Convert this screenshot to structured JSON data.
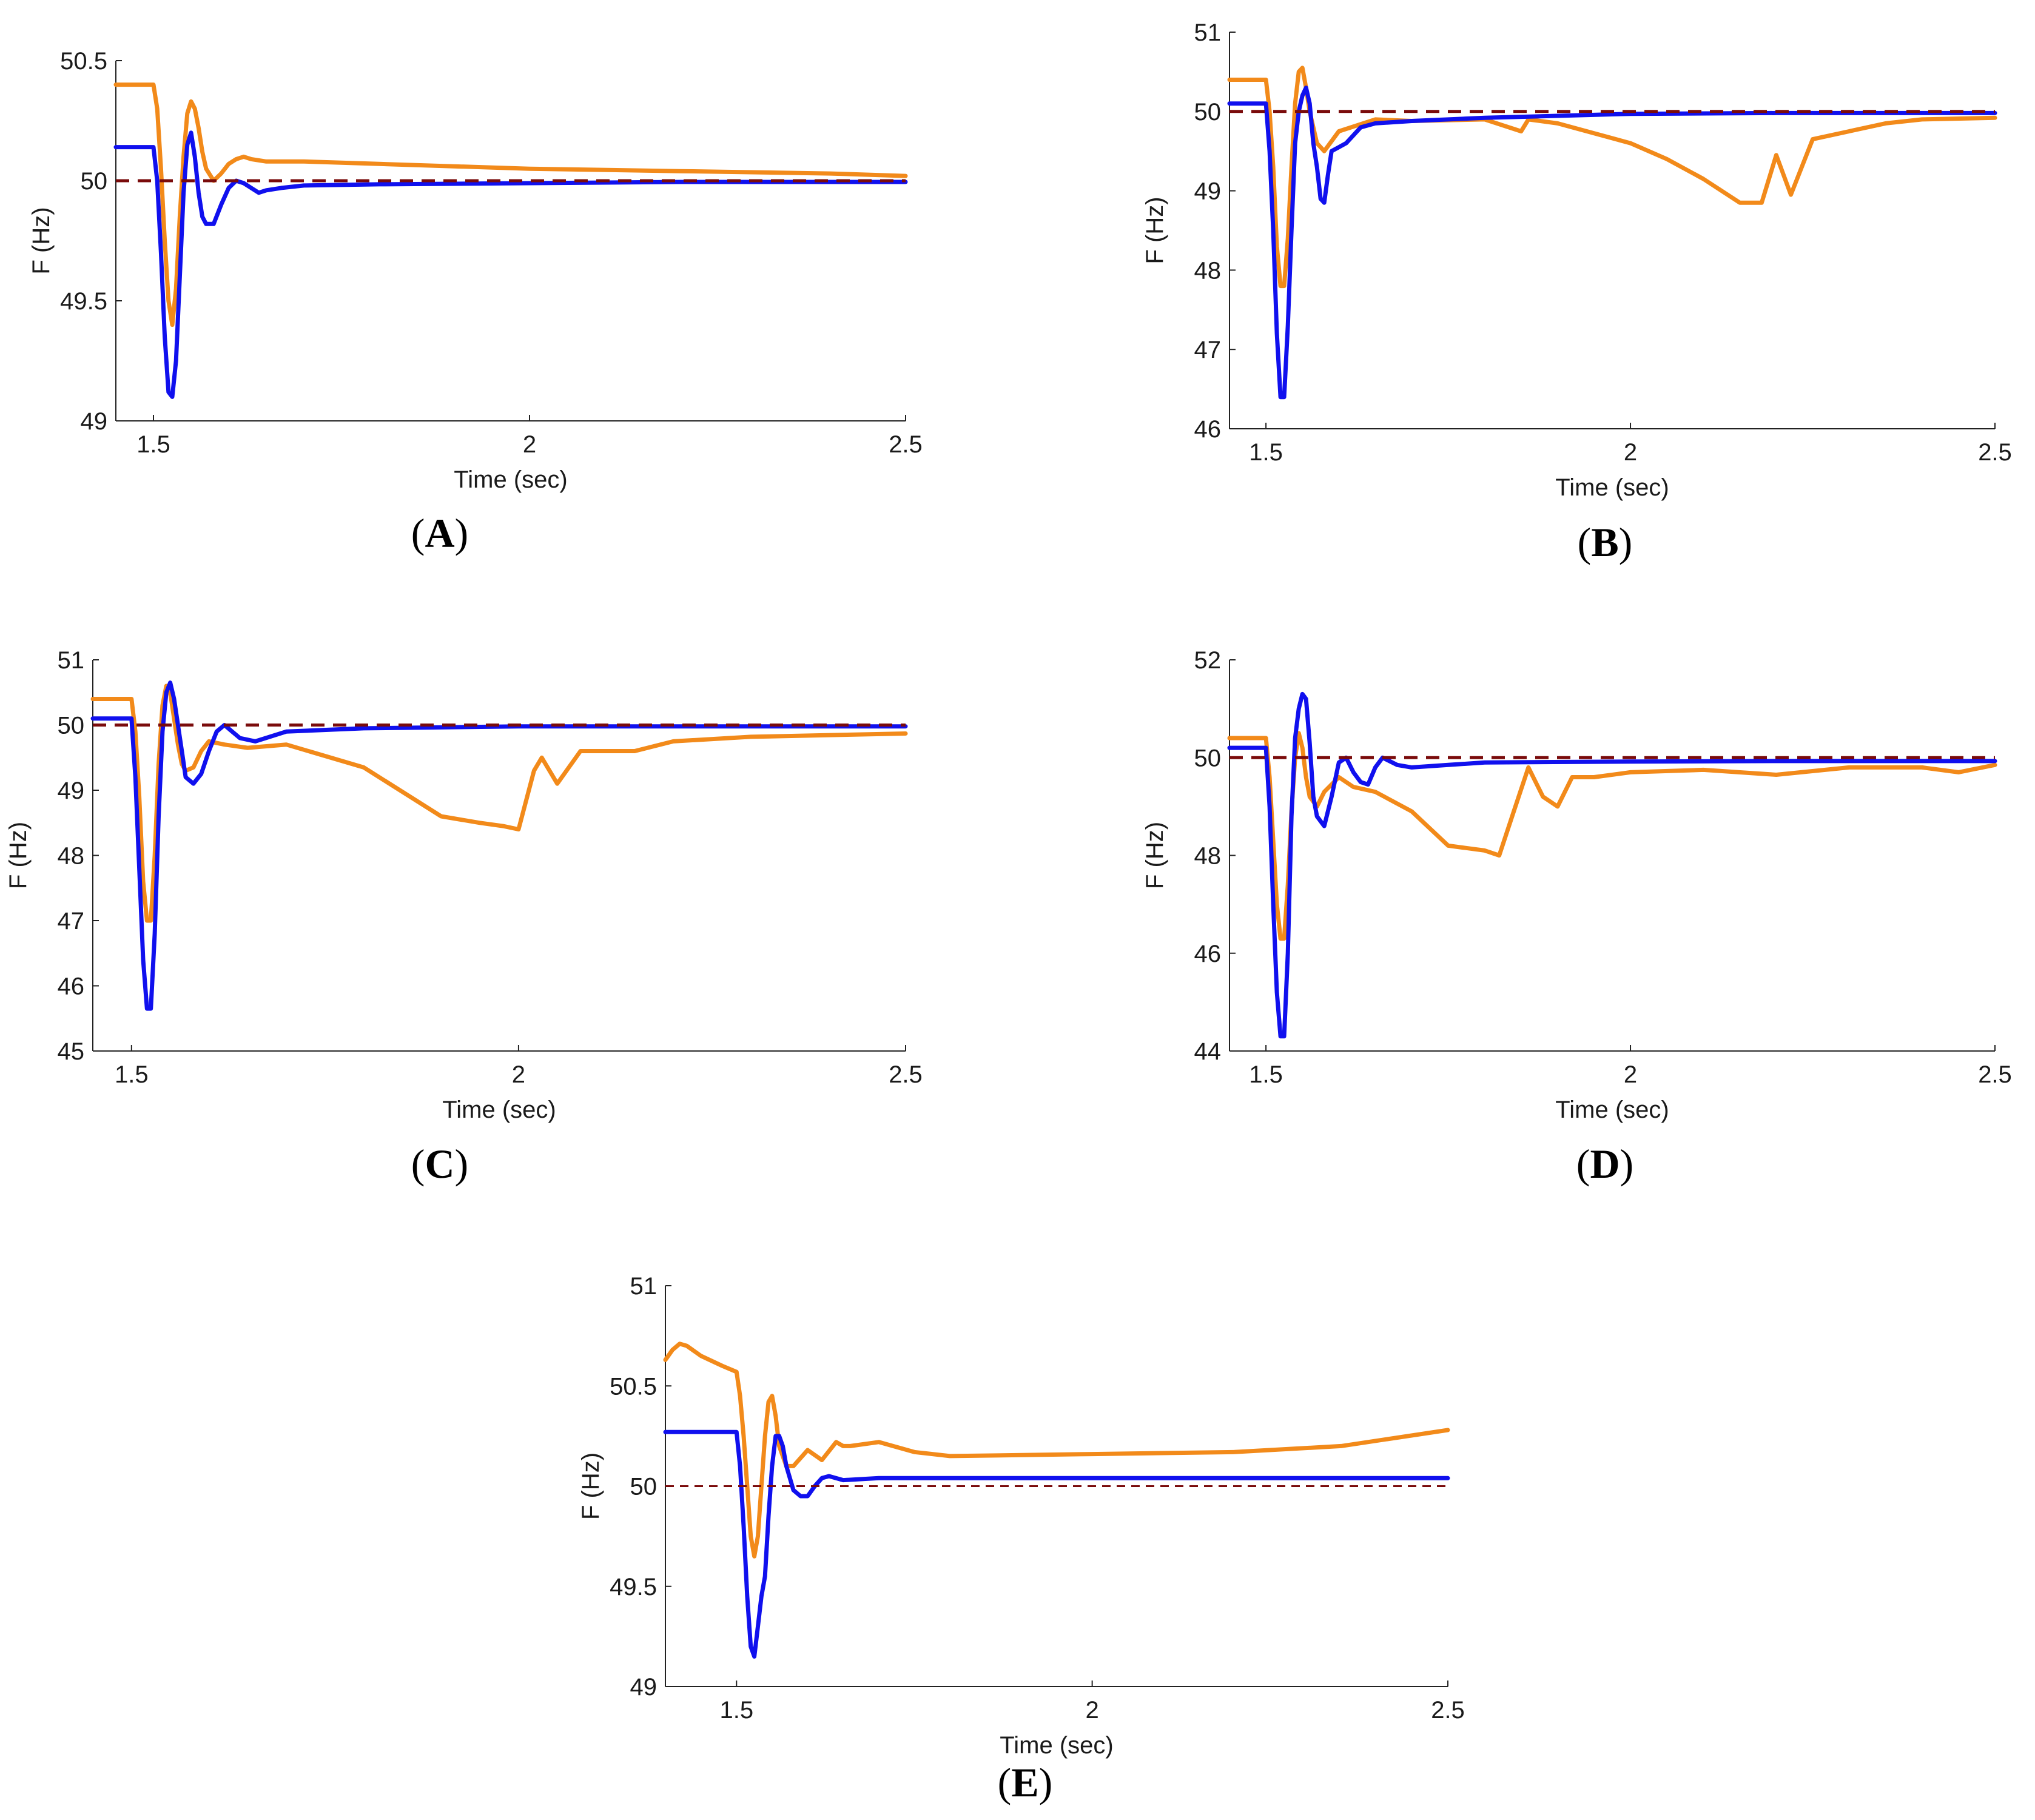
{
  "colors": {
    "orange": "#f28a1a",
    "blue": "#1010ee",
    "reference": "#7a0b0b",
    "axis": "#222222"
  },
  "chart_data": [
    {
      "panel": "A",
      "label": "A",
      "type": "line",
      "xlabel": "Time (sec)",
      "ylabel": "F (Hz)",
      "xlim": [
        1.45,
        2.5
      ],
      "ylim": [
        49,
        50.5
      ],
      "xticks": [
        {
          "v": 1.5,
          "t": "1.5"
        },
        {
          "v": 2,
          "t": "2"
        },
        {
          "v": 2.5,
          "t": "2.5"
        }
      ],
      "yticks": [
        {
          "v": 49,
          "t": "49"
        },
        {
          "v": 49.5,
          "t": "49.5"
        },
        {
          "v": 50,
          "t": "50"
        },
        {
          "v": 50.5,
          "t": "50.5"
        }
      ],
      "series": [
        {
          "name": "reference",
          "color": "reference",
          "dashed": true,
          "x": [
            1.45,
            2.5
          ],
          "y": [
            50,
            50
          ]
        },
        {
          "name": "orange",
          "color": "orange",
          "x": [
            1.45,
            1.5,
            1.505,
            1.51,
            1.515,
            1.52,
            1.525,
            1.53,
            1.535,
            1.54,
            1.545,
            1.55,
            1.555,
            1.56,
            1.565,
            1.57,
            1.58,
            1.59,
            1.6,
            1.61,
            1.62,
            1.63,
            1.65,
            1.7,
            1.8,
            2.0,
            2.2,
            2.4,
            2.5
          ],
          "y": [
            50.4,
            50.4,
            50.3,
            50.05,
            49.75,
            49.5,
            49.4,
            49.55,
            49.85,
            50.1,
            50.28,
            50.33,
            50.3,
            50.22,
            50.12,
            50.05,
            50.0,
            50.03,
            50.07,
            50.09,
            50.1,
            50.09,
            50.08,
            50.08,
            50.07,
            50.05,
            50.04,
            50.03,
            50.02
          ]
        },
        {
          "name": "blue",
          "color": "blue",
          "x": [
            1.45,
            1.5,
            1.505,
            1.51,
            1.515,
            1.52,
            1.525,
            1.53,
            1.535,
            1.54,
            1.545,
            1.55,
            1.555,
            1.56,
            1.565,
            1.57,
            1.58,
            1.59,
            1.6,
            1.61,
            1.62,
            1.63,
            1.64,
            1.65,
            1.67,
            1.7,
            1.8,
            2.0,
            2.2,
            2.5
          ],
          "y": [
            50.14,
            50.14,
            50.0,
            49.7,
            49.35,
            49.12,
            49.1,
            49.25,
            49.6,
            49.95,
            50.15,
            50.2,
            50.1,
            49.95,
            49.85,
            49.82,
            49.82,
            49.9,
            49.97,
            50.0,
            49.99,
            49.97,
            49.95,
            49.96,
            49.97,
            49.98,
            49.985,
            49.99,
            49.995,
            49.995
          ]
        }
      ]
    },
    {
      "panel": "B",
      "label": "B",
      "type": "line",
      "xlabel": "Time (sec)",
      "ylabel": "F (Hz)",
      "xlim": [
        1.45,
        2.5
      ],
      "ylim": [
        46,
        51
      ],
      "xticks": [
        {
          "v": 1.5,
          "t": "1.5"
        },
        {
          "v": 2,
          "t": "2"
        },
        {
          "v": 2.5,
          "t": "2.5"
        }
      ],
      "yticks": [
        {
          "v": 46,
          "t": "46"
        },
        {
          "v": 47,
          "t": "47"
        },
        {
          "v": 48,
          "t": "48"
        },
        {
          "v": 49,
          "t": "49"
        },
        {
          "v": 50,
          "t": "50"
        },
        {
          "v": 51,
          "t": "51"
        }
      ],
      "series": [
        {
          "name": "reference",
          "color": "reference",
          "dashed": true,
          "x": [
            1.45,
            2.5
          ],
          "y": [
            50,
            50
          ]
        },
        {
          "name": "orange",
          "color": "orange",
          "x": [
            1.45,
            1.5,
            1.505,
            1.51,
            1.515,
            1.52,
            1.525,
            1.53,
            1.535,
            1.54,
            1.545,
            1.55,
            1.555,
            1.56,
            1.565,
            1.57,
            1.58,
            1.6,
            1.65,
            1.7,
            1.8,
            1.85,
            1.86,
            1.9,
            2.0,
            2.05,
            2.1,
            2.15,
            2.18,
            2.2,
            2.22,
            2.25,
            2.3,
            2.35,
            2.4,
            2.5
          ],
          "y": [
            50.4,
            50.4,
            50.0,
            49.3,
            48.3,
            47.8,
            47.8,
            48.4,
            49.3,
            50.1,
            50.5,
            50.55,
            50.3,
            50.0,
            49.8,
            49.6,
            49.5,
            49.75,
            49.9,
            49.88,
            49.9,
            49.75,
            49.9,
            49.85,
            49.6,
            49.4,
            49.15,
            48.85,
            48.85,
            49.45,
            48.95,
            49.65,
            49.75,
            49.85,
            49.9,
            49.92
          ]
        },
        {
          "name": "blue",
          "color": "blue",
          "x": [
            1.45,
            1.5,
            1.505,
            1.51,
            1.515,
            1.52,
            1.525,
            1.53,
            1.535,
            1.54,
            1.545,
            1.55,
            1.555,
            1.56,
            1.565,
            1.57,
            1.575,
            1.58,
            1.585,
            1.59,
            1.6,
            1.61,
            1.63,
            1.65,
            1.7,
            1.8,
            2.0,
            2.2,
            2.5
          ],
          "y": [
            50.1,
            50.1,
            49.5,
            48.5,
            47.2,
            46.4,
            46.4,
            47.3,
            48.5,
            49.6,
            50.0,
            50.2,
            50.3,
            50.1,
            49.6,
            49.3,
            48.9,
            48.85,
            49.2,
            49.5,
            49.55,
            49.6,
            49.8,
            49.85,
            49.88,
            49.92,
            49.97,
            49.98,
            49.98
          ]
        }
      ]
    },
    {
      "panel": "C",
      "label": "C",
      "type": "line",
      "xlabel": "Time (sec)",
      "ylabel": "F (Hz)",
      "xlim": [
        1.45,
        2.5
      ],
      "ylim": [
        45,
        51
      ],
      "xticks": [
        {
          "v": 1.5,
          "t": "1.5"
        },
        {
          "v": 2,
          "t": "2"
        },
        {
          "v": 2.5,
          "t": "2.5"
        }
      ],
      "yticks": [
        {
          "v": 45,
          "t": "45"
        },
        {
          "v": 46,
          "t": "46"
        },
        {
          "v": 47,
          "t": "47"
        },
        {
          "v": 48,
          "t": "48"
        },
        {
          "v": 49,
          "t": "49"
        },
        {
          "v": 50,
          "t": "50"
        },
        {
          "v": 51,
          "t": "51"
        }
      ],
      "series": [
        {
          "name": "reference",
          "color": "reference",
          "dashed": true,
          "x": [
            1.45,
            2.5
          ],
          "y": [
            50,
            50
          ]
        },
        {
          "name": "orange",
          "color": "orange",
          "x": [
            1.45,
            1.5,
            1.505,
            1.51,
            1.515,
            1.52,
            1.525,
            1.53,
            1.535,
            1.54,
            1.545,
            1.55,
            1.555,
            1.56,
            1.565,
            1.57,
            1.58,
            1.59,
            1.6,
            1.62,
            1.65,
            1.7,
            1.8,
            1.9,
            1.95,
            1.98,
            2.0,
            2.02,
            2.03,
            2.05,
            2.08,
            2.1,
            2.15,
            2.2,
            2.3,
            2.5
          ],
          "y": [
            50.4,
            50.4,
            49.9,
            48.9,
            47.6,
            47.0,
            47.0,
            48.0,
            49.4,
            50.3,
            50.6,
            50.5,
            50.1,
            49.7,
            49.4,
            49.3,
            49.35,
            49.6,
            49.75,
            49.7,
            49.65,
            49.7,
            49.35,
            48.6,
            48.5,
            48.45,
            48.4,
            49.3,
            49.5,
            49.1,
            49.6,
            49.6,
            49.6,
            49.75,
            49.82,
            49.87
          ]
        },
        {
          "name": "blue",
          "color": "blue",
          "x": [
            1.45,
            1.5,
            1.505,
            1.51,
            1.515,
            1.52,
            1.525,
            1.53,
            1.535,
            1.54,
            1.545,
            1.55,
            1.555,
            1.56,
            1.565,
            1.57,
            1.58,
            1.59,
            1.6,
            1.61,
            1.62,
            1.64,
            1.66,
            1.7,
            1.8,
            2.0,
            2.2,
            2.5
          ],
          "y": [
            50.1,
            50.1,
            49.2,
            47.8,
            46.4,
            45.65,
            45.65,
            46.8,
            48.6,
            49.9,
            50.5,
            50.65,
            50.4,
            50.0,
            49.6,
            49.2,
            49.1,
            49.25,
            49.6,
            49.9,
            50.0,
            49.8,
            49.75,
            49.9,
            49.95,
            49.98,
            49.98,
            49.98
          ]
        }
      ]
    },
    {
      "panel": "D",
      "label": "D",
      "type": "line",
      "xlabel": "Time (sec)",
      "ylabel": "F (Hz)",
      "xlim": [
        1.45,
        2.5
      ],
      "ylim": [
        44,
        52
      ],
      "xticks": [
        {
          "v": 1.5,
          "t": "1.5"
        },
        {
          "v": 2,
          "t": "2"
        },
        {
          "v": 2.5,
          "t": "2.5"
        }
      ],
      "yticks": [
        {
          "v": 44,
          "t": "44"
        },
        {
          "v": 46,
          "t": "46"
        },
        {
          "v": 48,
          "t": "48"
        },
        {
          "v": 50,
          "t": "50"
        },
        {
          "v": 52,
          "t": "52"
        }
      ],
      "series": [
        {
          "name": "reference",
          "color": "reference",
          "dashed": true,
          "x": [
            1.45,
            2.5
          ],
          "y": [
            50,
            50
          ]
        },
        {
          "name": "orange",
          "color": "orange",
          "x": [
            1.45,
            1.5,
            1.505,
            1.51,
            1.515,
            1.52,
            1.525,
            1.53,
            1.535,
            1.54,
            1.545,
            1.55,
            1.555,
            1.56,
            1.57,
            1.58,
            1.6,
            1.62,
            1.65,
            1.7,
            1.75,
            1.8,
            1.82,
            1.84,
            1.86,
            1.88,
            1.9,
            1.92,
            1.95,
            2.0,
            2.1,
            2.2,
            2.3,
            2.4,
            2.45,
            2.5
          ],
          "y": [
            50.4,
            50.4,
            49.6,
            48.3,
            47.0,
            46.3,
            46.3,
            47.4,
            48.9,
            50.0,
            50.5,
            50.2,
            49.6,
            49.2,
            49.0,
            49.3,
            49.6,
            49.4,
            49.3,
            48.9,
            48.2,
            48.1,
            48.0,
            48.9,
            49.8,
            49.2,
            49.0,
            49.6,
            49.6,
            49.7,
            49.75,
            49.65,
            49.8,
            49.8,
            49.7,
            49.85
          ]
        },
        {
          "name": "blue",
          "color": "blue",
          "x": [
            1.45,
            1.5,
            1.505,
            1.51,
            1.515,
            1.52,
            1.525,
            1.53,
            1.535,
            1.54,
            1.545,
            1.55,
            1.555,
            1.56,
            1.565,
            1.57,
            1.58,
            1.59,
            1.6,
            1.61,
            1.62,
            1.63,
            1.64,
            1.65,
            1.66,
            1.68,
            1.7,
            1.75,
            1.8,
            2.0,
            2.2,
            2.5
          ],
          "y": [
            50.2,
            50.2,
            49.0,
            47.0,
            45.2,
            44.3,
            44.3,
            46.0,
            48.8,
            50.4,
            51.0,
            51.3,
            51.2,
            50.3,
            49.2,
            48.8,
            48.6,
            49.2,
            49.9,
            50.0,
            49.7,
            49.5,
            49.45,
            49.8,
            50.0,
            49.85,
            49.8,
            49.85,
            49.9,
            49.92,
            49.93,
            49.93
          ]
        }
      ]
    },
    {
      "panel": "E",
      "label": "E",
      "type": "line",
      "xlabel": "Time (sec)",
      "ylabel": "F (Hz)",
      "xlim": [
        1.4,
        2.5
      ],
      "ylim": [
        49,
        51
      ],
      "xticks": [
        {
          "v": 1.5,
          "t": "1.5"
        },
        {
          "v": 2,
          "t": "2"
        },
        {
          "v": 2.5,
          "t": "2.5"
        }
      ],
      "yticks": [
        {
          "v": 49,
          "t": "49"
        },
        {
          "v": 49.5,
          "t": "49.5"
        },
        {
          "v": 50,
          "t": "50"
        },
        {
          "v": 50.5,
          "t": "50.5"
        },
        {
          "v": 51,
          "t": "51"
        }
      ],
      "series": [
        {
          "name": "reference",
          "color": "reference",
          "dashed": true,
          "thin": true,
          "x": [
            1.4,
            2.5
          ],
          "y": [
            50,
            50
          ]
        },
        {
          "name": "orange",
          "color": "orange",
          "x": [
            1.4,
            1.41,
            1.42,
            1.43,
            1.45,
            1.48,
            1.5,
            1.505,
            1.51,
            1.515,
            1.52,
            1.525,
            1.53,
            1.535,
            1.54,
            1.545,
            1.55,
            1.555,
            1.56,
            1.57,
            1.58,
            1.6,
            1.62,
            1.64,
            1.65,
            1.66,
            1.7,
            1.75,
            1.8,
            2.0,
            2.2,
            2.35,
            2.5
          ],
          "y": [
            50.63,
            50.68,
            50.71,
            50.7,
            50.65,
            50.6,
            50.57,
            50.45,
            50.25,
            50.0,
            49.75,
            49.65,
            49.75,
            50.0,
            50.25,
            50.42,
            50.45,
            50.35,
            50.2,
            50.1,
            50.1,
            50.18,
            50.13,
            50.22,
            50.2,
            50.2,
            50.22,
            50.17,
            50.15,
            50.16,
            50.17,
            50.2,
            50.28
          ]
        },
        {
          "name": "blue",
          "color": "blue",
          "x": [
            1.4,
            1.5,
            1.505,
            1.51,
            1.515,
            1.52,
            1.525,
            1.53,
            1.535,
            1.54,
            1.545,
            1.55,
            1.555,
            1.56,
            1.565,
            1.57,
            1.58,
            1.59,
            1.6,
            1.61,
            1.62,
            1.63,
            1.65,
            1.7,
            2.0,
            2.2,
            2.5
          ],
          "y": [
            50.27,
            50.27,
            50.1,
            49.8,
            49.45,
            49.2,
            49.15,
            49.3,
            49.45,
            49.55,
            49.85,
            50.1,
            50.25,
            50.25,
            50.2,
            50.1,
            49.98,
            49.95,
            49.95,
            50.0,
            50.04,
            50.05,
            50.03,
            50.04,
            50.04,
            50.04,
            50.04
          ]
        }
      ]
    }
  ]
}
